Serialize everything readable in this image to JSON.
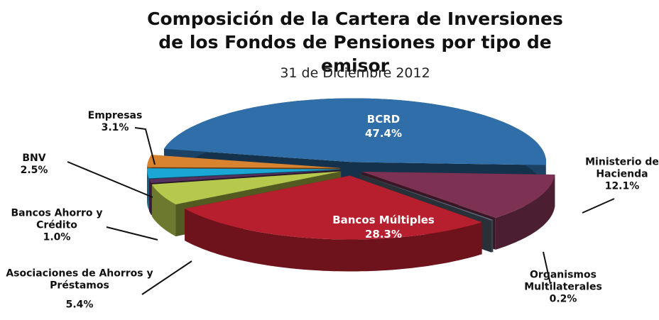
{
  "chart_data": {
    "type": "pie3d",
    "title": "Composición de la Cartera de Inversiones de los Fondos de Pensiones por tipo de emisor",
    "subtitle": "31 de Diciembre 2012",
    "categories": [
      "BCRD",
      "Ministerio de Hacienda",
      "Organismos Multilaterales",
      "Bancos Múltiples",
      "Asociaciones de Ahorros y Préstamos",
      "Bancos Ahorro y Crédito",
      "BNV",
      "Empresas"
    ],
    "values": [
      47.4,
      12.1,
      0.2,
      28.3,
      5.4,
      1.0,
      2.5,
      3.1
    ],
    "value_labels": [
      "47.4%",
      "12.1%",
      "0.2%",
      "28.3%",
      "5.4%",
      "1.0%",
      "2.5%",
      "3.1%"
    ],
    "colors": [
      "#2f6ea9",
      "#7d3253",
      "#5d6b7c",
      "#b71f2e",
      "#b6c94c",
      "#55305f",
      "#1aa7d6",
      "#d8832f"
    ]
  }
}
